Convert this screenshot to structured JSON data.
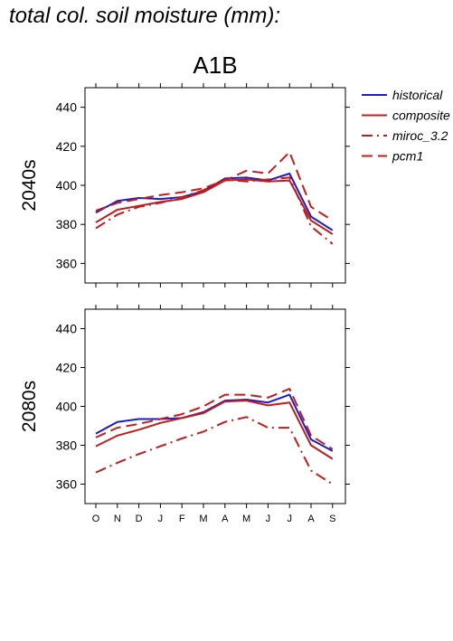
{
  "figure_title": "total col. soil moisture (mm):",
  "chart_data": {
    "type": "line",
    "title": "A1B",
    "x_labels": [
      "O",
      "N",
      "D",
      "J",
      "F",
      "M",
      "A",
      "M",
      "J",
      "J",
      "A",
      "S"
    ],
    "ylim": [
      350,
      450
    ],
    "y_ticks": [
      360,
      380,
      400,
      420,
      440
    ],
    "legend_position": "right",
    "legend": [
      {
        "name": "historical",
        "color": "#1c1cc8",
        "dash": "solid"
      },
      {
        "name": "composite",
        "color": "#c01c1c",
        "dash": "solid"
      },
      {
        "name": "miroc_3.2",
        "color": "#c01c1c",
        "dash": "dashdot"
      },
      {
        "name": "pcm1",
        "color": "#c01c1c",
        "dash": "dashed"
      }
    ],
    "panels": [
      {
        "label": "2040s",
        "series": [
          {
            "name": "historical",
            "values": [
              386,
              392,
              393.5,
              393,
              394,
              397,
              403.5,
              404,
              402.5,
              406,
              384,
              377
            ]
          },
          {
            "name": "composite",
            "values": [
              381,
              387.5,
              389.5,
              391.5,
              393,
              396.5,
              402.5,
              403,
              402,
              402.5,
              382,
              375
            ]
          },
          {
            "name": "miroc_3.2",
            "values": [
              378,
              385,
              389,
              391,
              394,
              397.5,
              403,
              402,
              403,
              404,
              379,
              370
            ]
          },
          {
            "name": "pcm1",
            "values": [
              387,
              391,
              393,
              395,
              396.5,
              398.5,
              402.5,
              407.5,
              406,
              417,
              389,
              382
            ]
          }
        ]
      },
      {
        "label": "2080s",
        "series": [
          {
            "name": "historical",
            "values": [
              386,
              392,
              393.5,
              393.5,
              394,
              397,
              403,
              403.5,
              402,
              406,
              383,
              377
            ]
          },
          {
            "name": "composite",
            "values": [
              379.5,
              385,
              388,
              391.5,
              394,
              396.5,
              402.5,
              403,
              400.5,
              402,
              380,
              373
            ]
          },
          {
            "name": "miroc_3.2",
            "values": [
              366,
              371,
              375.5,
              379.5,
              383.5,
              387,
              392,
              394.5,
              389,
              389,
              367,
              360
            ]
          },
          {
            "name": "pcm1",
            "values": [
              384,
              389,
              391,
              393.5,
              396,
              400,
              406,
              406,
              404.5,
              409,
              385,
              378
            ]
          }
        ]
      }
    ]
  }
}
